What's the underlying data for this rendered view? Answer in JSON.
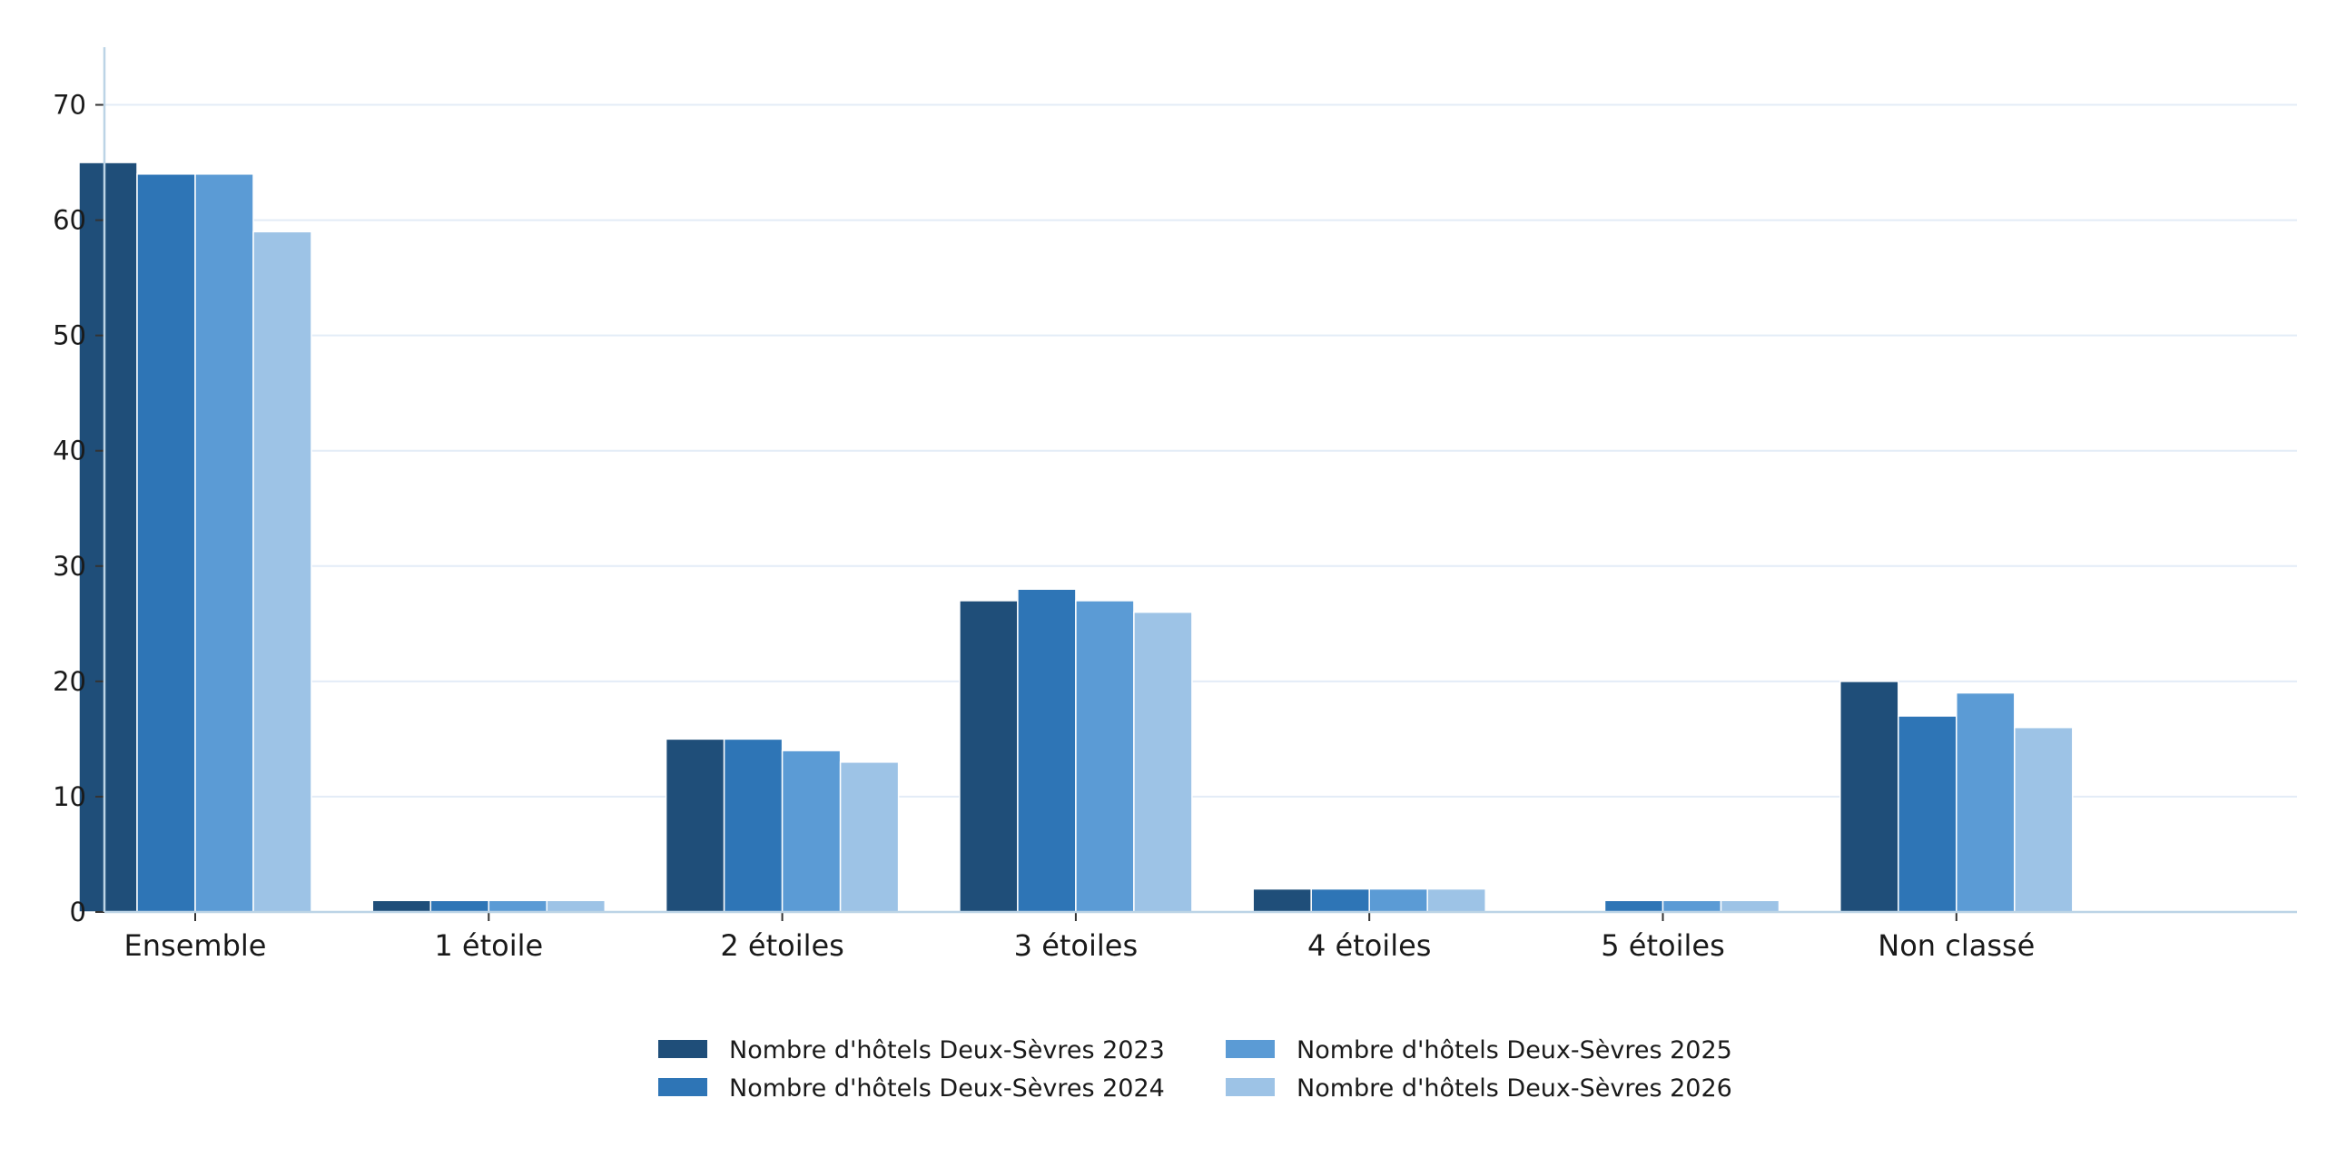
{
  "chart_data": {
    "type": "bar",
    "title": "",
    "xlabel": "",
    "ylabel": "",
    "categories": [
      "Ensemble",
      "1 étoile",
      "2 étoiles",
      "3 étoiles",
      "4 étoiles",
      "5 étoiles",
      "Non classé"
    ],
    "series": [
      {
        "name": "Nombre d'hôtels Deux-Sèvres 2023",
        "color": "#1f4e79",
        "values": [
          65,
          1,
          15,
          27,
          2,
          0,
          20
        ]
      },
      {
        "name": "Nombre d'hôtels Deux-Sèvres 2024",
        "color": "#2e75b6",
        "values": [
          64,
          1,
          15,
          28,
          2,
          1,
          17
        ]
      },
      {
        "name": "Nombre d'hôtels Deux-Sèvres 2025",
        "color": "#5b9bd5",
        "values": [
          64,
          1,
          14,
          27,
          2,
          1,
          19
        ]
      },
      {
        "name": "Nombre d'hôtels Deux-Sèvres 2026",
        "color": "#9dc3e6",
        "values": [
          59,
          1,
          13,
          26,
          2,
          1,
          16
        ]
      }
    ],
    "yticks": [
      0,
      10,
      20,
      30,
      40,
      50,
      60,
      70
    ],
    "ylim": [
      0,
      75
    ],
    "grid": "horizontal",
    "legend_position": "bottom-center",
    "colors": {
      "axis": "#bcd4e6",
      "grid": "#e3ecf7"
    }
  }
}
